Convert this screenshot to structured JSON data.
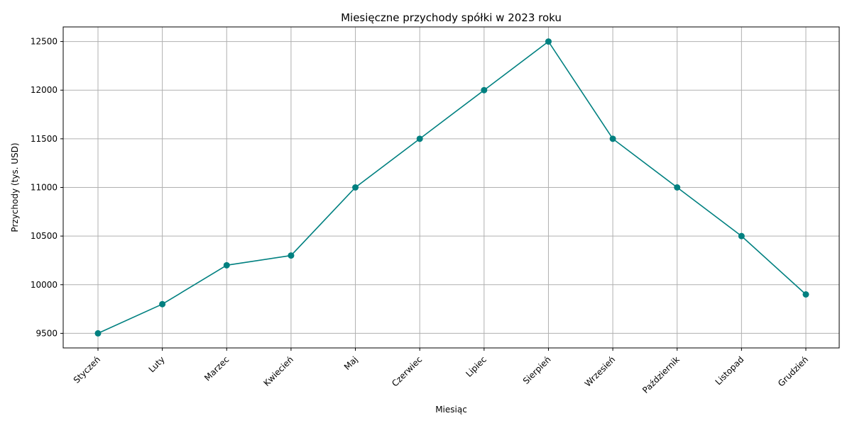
{
  "chart_data": {
    "type": "line",
    "title": "Miesięczne przychody spółki w 2023 roku",
    "xlabel": "Miesiąc",
    "ylabel": "Przychody (tys. USD)",
    "categories": [
      "Styczeń",
      "Luty",
      "Marzec",
      "Kwiecień",
      "Maj",
      "Czerwiec",
      "Lipiec",
      "Sierpień",
      "Wrzesień",
      "Październik",
      "Listopad",
      "Grudzień"
    ],
    "series": [
      {
        "values": [
          9500,
          9800,
          10200,
          10300,
          11000,
          11500,
          12000,
          12500,
          11500,
          11000,
          10500,
          9900
        ],
        "color": "#008080",
        "marker": "circle"
      }
    ],
    "yticks": [
      9500,
      10000,
      10500,
      11000,
      11500,
      12000,
      12500
    ],
    "ylim": [
      9350,
      12650
    ],
    "grid": true,
    "x_tick_rotation": "45 degrees",
    "legend": "none"
  }
}
